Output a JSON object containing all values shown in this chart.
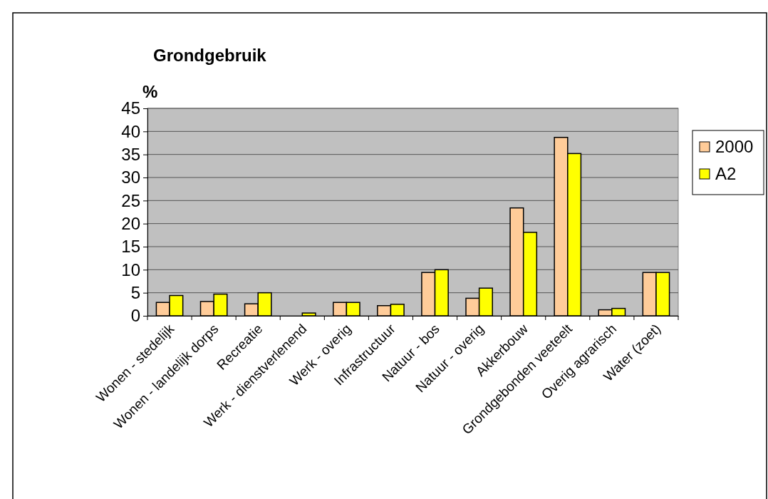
{
  "chart_data": {
    "type": "bar",
    "title": "Grondgebruik",
    "ylabel": "%",
    "categories": [
      "Wonen - stedelijk",
      "Wonen - landelijk dorps",
      "Recreatie",
      "Werk - dienstverlenend",
      "Werk - overig",
      "Infrastructuur",
      "Natuur - bos",
      "Natuur - overig",
      "Akkerbouw",
      "Grondgebonden veeteelt",
      "Overig agrarisch",
      "Water (zoet)"
    ],
    "series": [
      {
        "name": "2000",
        "color": "#ffcc99",
        "values": [
          2.9,
          3.1,
          2.6,
          0,
          2.9,
          2.2,
          9.4,
          3.8,
          23.4,
          38.7,
          1.3,
          9.4
        ]
      },
      {
        "name": "A2",
        "color": "#ffff00",
        "values": [
          4.4,
          4.7,
          5.0,
          0.6,
          2.9,
          2.5,
          10.0,
          6.0,
          18.1,
          35.2,
          1.6,
          9.4
        ]
      }
    ],
    "ylim": [
      0,
      45
    ],
    "yticks": [
      0,
      5,
      10,
      15,
      20,
      25,
      30,
      35,
      40,
      45
    ],
    "grid": "y",
    "legend": "right"
  }
}
